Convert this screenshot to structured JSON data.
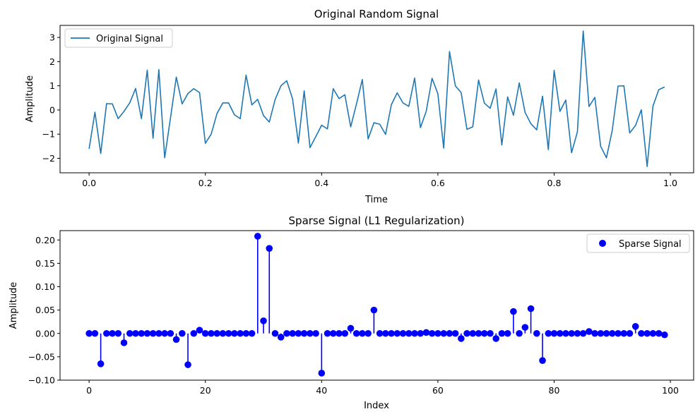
{
  "chart_data": [
    {
      "type": "line",
      "title": "Original Random Signal",
      "xlabel": "Time",
      "ylabel": "Amplitude",
      "xlim": [
        -0.05,
        1.04
      ],
      "ylim": [
        -2.6,
        3.5
      ],
      "xticks": [
        0.0,
        0.2,
        0.4,
        0.6,
        0.8,
        1.0
      ],
      "xtick_labels": [
        "0.0",
        "0.2",
        "0.4",
        "0.6",
        "0.8",
        "1.0"
      ],
      "yticks": [
        -2,
        -1,
        0,
        1,
        2,
        3
      ],
      "ytick_labels": [
        "−2",
        "−1",
        "0",
        "1",
        "2",
        "3"
      ],
      "grid": false,
      "legend_position": "upper-left",
      "series": [
        {
          "name": "Original Signal",
          "color": "#1f77b4",
          "x_start": 0.0,
          "x_step": 0.01,
          "values": [
            -1.61,
            -0.09,
            -1.8,
            0.26,
            0.25,
            -0.36,
            -0.06,
            0.3,
            0.89,
            -0.36,
            1.65,
            -1.17,
            1.67,
            -1.98,
            -0.33,
            1.36,
            0.25,
            0.68,
            0.88,
            0.72,
            -1.38,
            -1.0,
            -0.15,
            0.29,
            0.29,
            -0.2,
            -0.36,
            1.44,
            0.21,
            0.44,
            -0.23,
            -0.5,
            0.43,
            1.0,
            1.21,
            0.46,
            -1.37,
            0.79,
            -1.56,
            -1.1,
            -0.63,
            -0.78,
            0.88,
            0.47,
            0.63,
            -0.7,
            0.25,
            1.26,
            -1.2,
            -0.53,
            -0.59,
            -1.01,
            0.22,
            0.71,
            0.29,
            0.15,
            1.32,
            -0.73,
            -0.05,
            1.31,
            0.67,
            -1.58,
            2.42,
            1.0,
            0.72,
            -0.8,
            -0.7,
            1.24,
            0.28,
            0.07,
            0.87,
            -1.45,
            0.54,
            -0.22,
            1.12,
            -0.1,
            -0.57,
            -0.82,
            0.57,
            -1.64,
            1.64,
            -0.06,
            0.41,
            -1.77,
            -0.91,
            3.27,
            0.14,
            0.52,
            -1.5,
            -1.98,
            -0.84,
            0.99,
            1.0,
            -0.95,
            -0.64,
            0.01,
            -2.34,
            0.16,
            0.84,
            0.95
          ]
        }
      ]
    },
    {
      "type": "stem",
      "title": "Sparse Signal (L1 Regularization)",
      "xlabel": "Index",
      "ylabel": "Amplitude",
      "xlim": [
        -5,
        104
      ],
      "ylim": [
        -0.1,
        0.22
      ],
      "xticks": [
        0,
        20,
        40,
        60,
        80,
        100
      ],
      "xtick_labels": [
        "0",
        "20",
        "40",
        "60",
        "80",
        "100"
      ],
      "yticks": [
        -0.1,
        -0.05,
        0.0,
        0.05,
        0.1,
        0.15,
        0.2
      ],
      "ytick_labels": [
        "−0.10",
        "−0.05",
        "0.00",
        "0.05",
        "0.10",
        "0.15",
        "0.20"
      ],
      "grid": false,
      "legend_position": "upper-right",
      "series": [
        {
          "name": "Sparse Signal",
          "color": "#0000ff",
          "x_start": 0,
          "x_step": 1,
          "values": [
            0,
            0,
            -0.065,
            0,
            0,
            0,
            -0.02,
            0,
            0,
            0,
            0,
            0,
            0,
            0,
            0,
            -0.013,
            0,
            -0.067,
            0,
            0.007,
            0,
            0,
            0,
            0,
            0,
            0,
            0,
            0,
            0,
            0.208,
            0.027,
            0.182,
            0,
            -0.008,
            0,
            0,
            0,
            0,
            0,
            0,
            -0.085,
            0,
            0,
            0,
            0,
            0.011,
            0,
            0,
            0,
            0.05,
            0,
            0,
            0,
            0,
            0,
            0,
            0,
            0,
            0.002,
            0,
            0,
            0,
            0,
            0,
            -0.011,
            0,
            0,
            0,
            0,
            0,
            -0.011,
            0,
            0,
            0.047,
            0,
            0.013,
            0.053,
            0,
            -0.058,
            0,
            0,
            0,
            0,
            0,
            0,
            0,
            0.004,
            0,
            0,
            0,
            0,
            0,
            0,
            0,
            0.015,
            0,
            0,
            0,
            0,
            -0.003
          ]
        }
      ]
    }
  ]
}
